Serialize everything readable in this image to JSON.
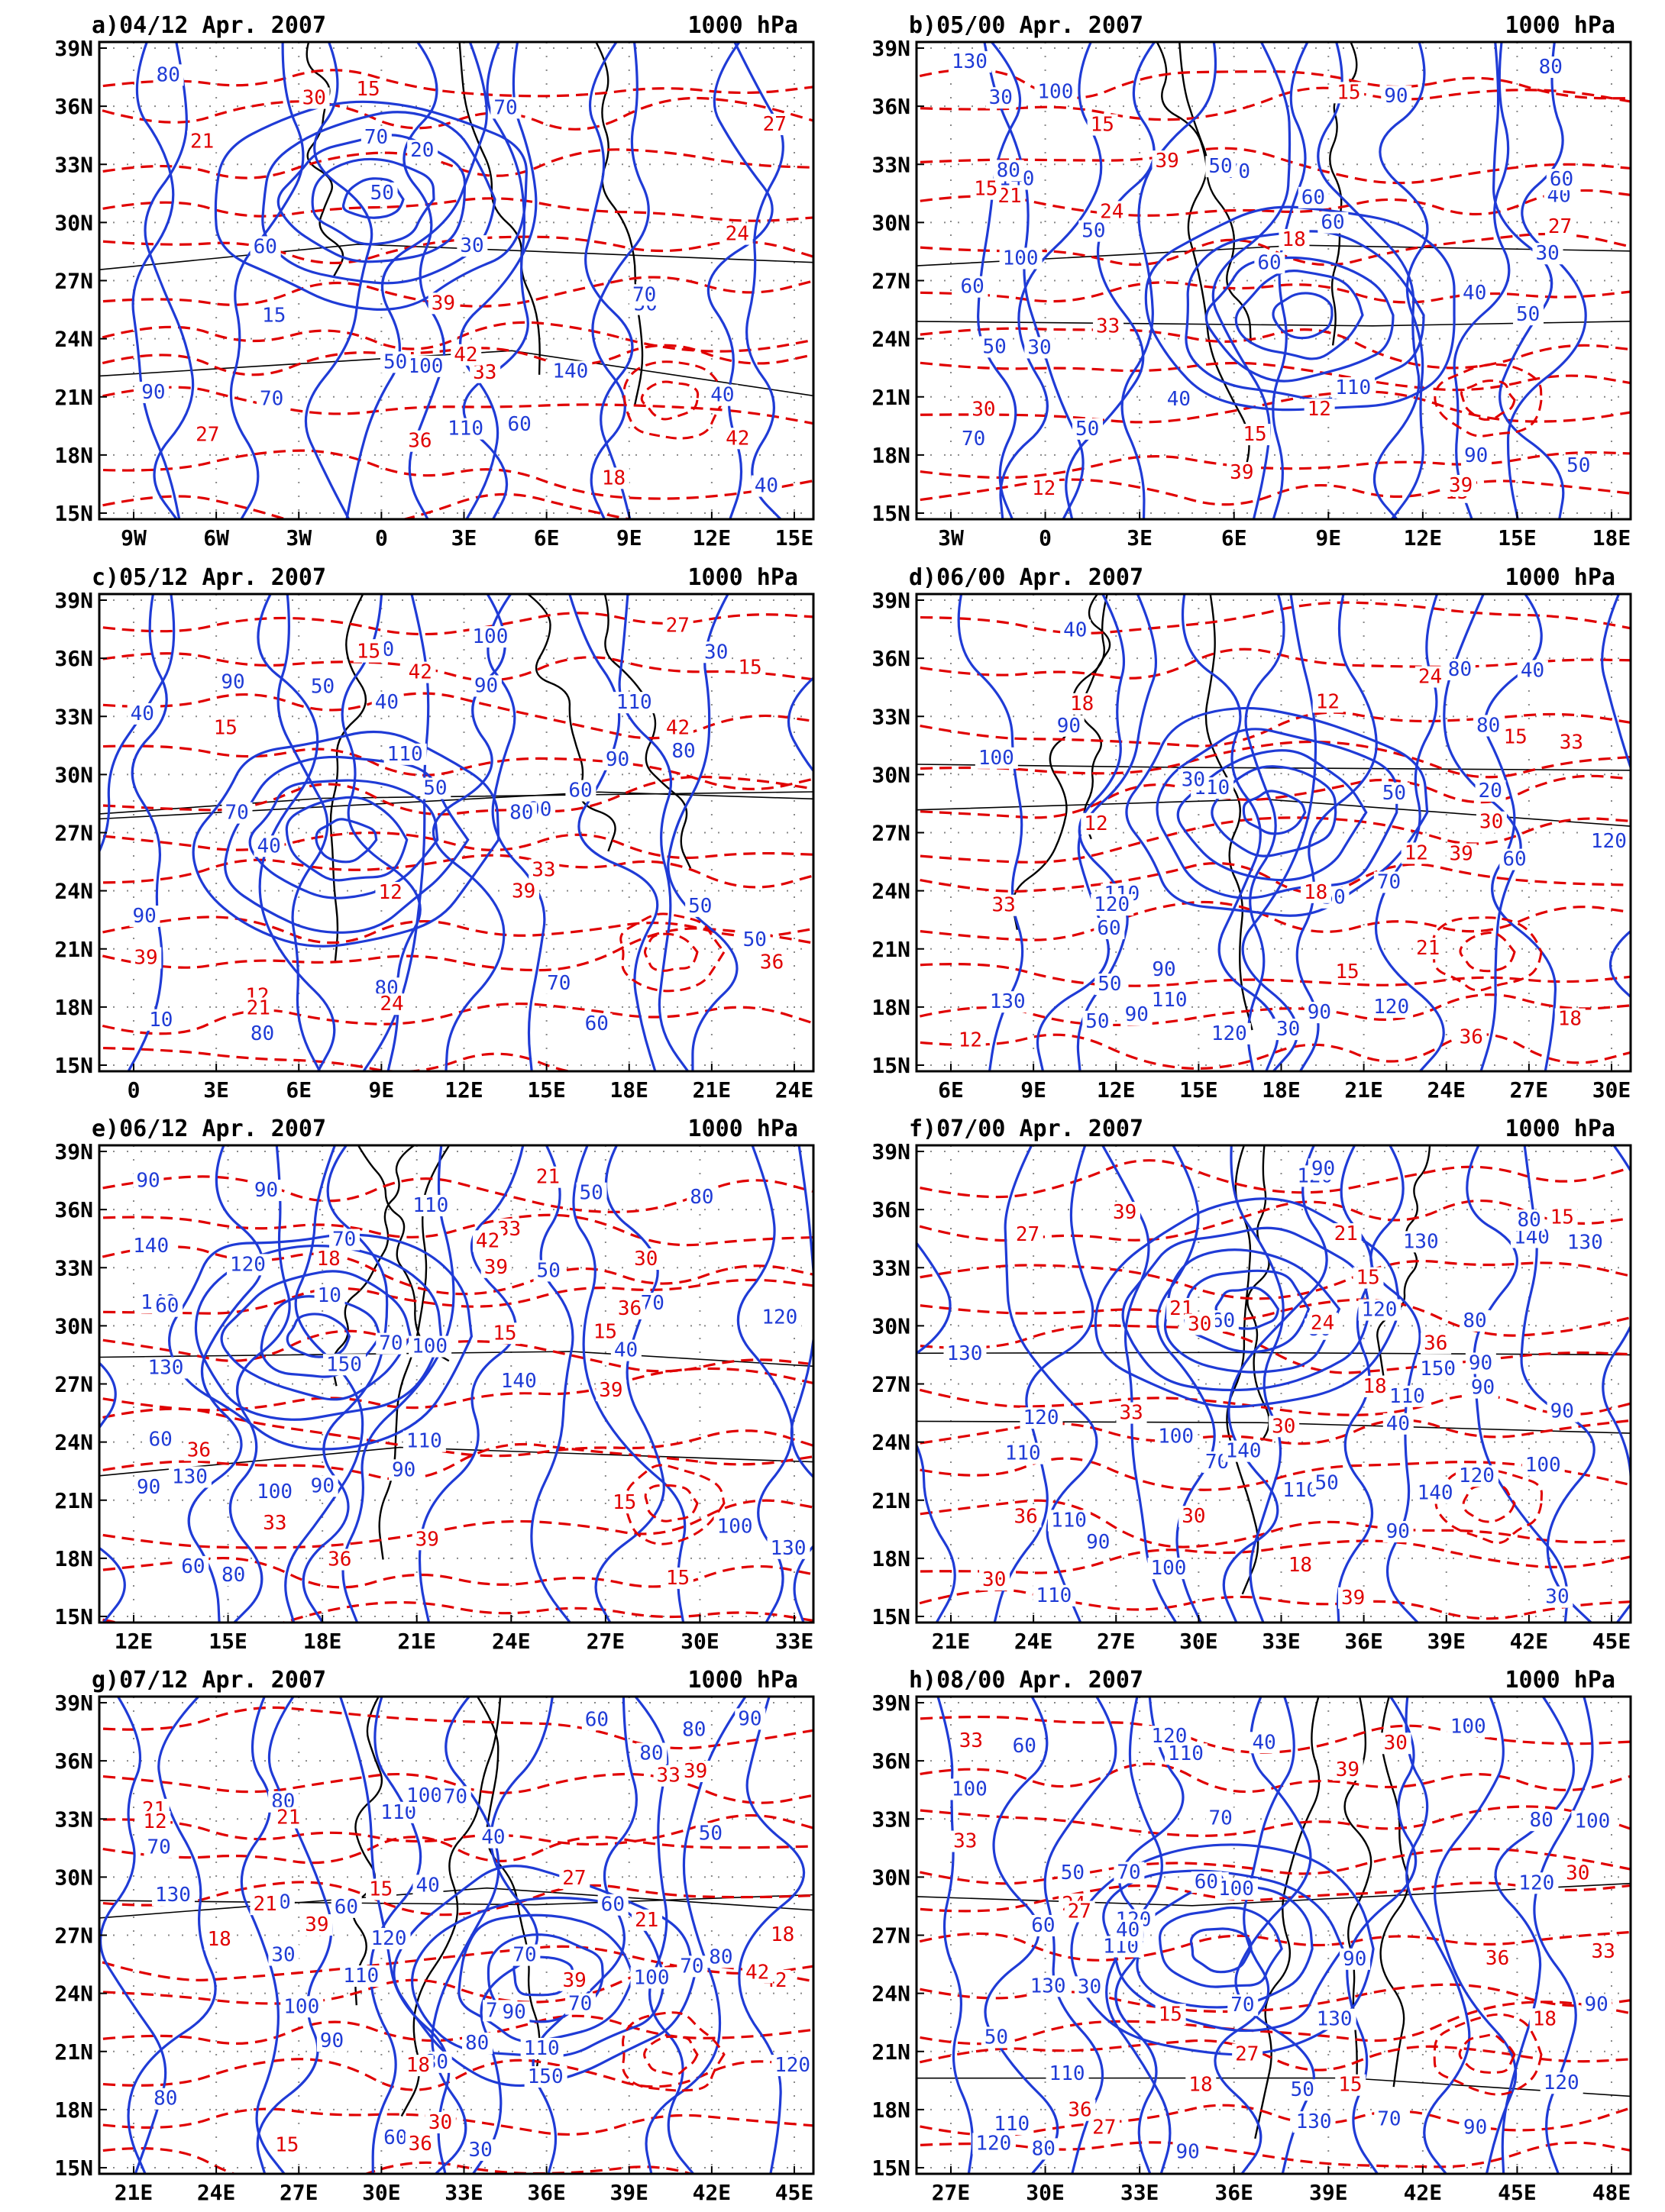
{
  "figure": {
    "colors": {
      "geopotential_contour": "#1f3bd6",
      "temperature_contour": "#e00000",
      "coastline": "#000000",
      "grid": "#888888"
    },
    "panels": [
      {
        "title_left": "a)04/12 Apr. 2007",
        "title_right": "1000 hPa",
        "x_ticks": [
          "9W",
          "6W",
          "3W",
          "0",
          "3E",
          "6E",
          "9E",
          "12E",
          "15E"
        ],
        "y_ticks": [
          "39N",
          "36N",
          "33N",
          "30N",
          "27N",
          "24N",
          "21N",
          "18N",
          "15N"
        ],
        "blue_labels": [
          "100",
          "15",
          "80",
          "70",
          "20",
          "110",
          "30",
          "140",
          "50",
          "70",
          "60",
          "90",
          "50",
          "50",
          "70",
          "70",
          "60",
          "40",
          "40"
        ],
        "red_labels": [
          "21",
          "24",
          "27",
          "30",
          "27",
          "33",
          "36",
          "39",
          "42",
          "42",
          "18",
          "15"
        ]
      },
      {
        "title_left": "b)05/00 Apr. 2007",
        "title_right": "1000 hPa",
        "x_ticks": [
          "3W",
          "0",
          "3E",
          "6E",
          "9E",
          "12E",
          "15E",
          "18E"
        ],
        "y_ticks": [
          "39N",
          "36N",
          "33N",
          "30N",
          "27N",
          "24N",
          "21N",
          "18N",
          "15N"
        ],
        "blue_labels": [
          "100",
          "80",
          "70",
          "110",
          "140",
          "130",
          "70",
          "60",
          "50",
          "40",
          "30",
          "50",
          "50",
          "60",
          "60",
          "50",
          "40",
          "80",
          "90",
          "100",
          "90",
          "30",
          "60",
          "50",
          "30",
          "60",
          "50",
          "40"
        ],
        "red_labels": [
          "12",
          "12",
          "15",
          "15",
          "15",
          "18",
          "21",
          "24",
          "27",
          "30",
          "33",
          "39",
          "39",
          "39",
          "15",
          "15"
        ]
      },
      {
        "title_left": "c)05/12 Apr. 2007",
        "title_right": "1000 hPa",
        "x_ticks": [
          "0",
          "3E",
          "6E",
          "9E",
          "12E",
          "15E",
          "18E",
          "21E",
          "24E"
        ],
        "y_ticks": [
          "39N",
          "36N",
          "33N",
          "30N",
          "27N",
          "24N",
          "21N",
          "18N",
          "15N"
        ],
        "blue_labels": [
          "110",
          "90",
          "90",
          "80",
          "90",
          "90",
          "100",
          "110",
          "80",
          "70",
          "50",
          "30",
          "10",
          "60",
          "40",
          "50",
          "40",
          "40",
          "50",
          "80",
          "60",
          "70",
          "80",
          "90",
          "50",
          "100"
        ],
        "red_labels": [
          "15",
          "12",
          "15",
          "12",
          "21",
          "24",
          "27",
          "33",
          "36",
          "39",
          "42",
          "42",
          "39",
          "15"
        ]
      },
      {
        "title_left": "d)06/00 Apr. 2007",
        "title_right": "1000 hPa",
        "x_ticks": [
          "6E",
          "9E",
          "12E",
          "15E",
          "18E",
          "21E",
          "24E",
          "27E",
          "30E"
        ],
        "y_ticks": [
          "39N",
          "36N",
          "33N",
          "30N",
          "27N",
          "24N",
          "21N",
          "18N",
          "15N"
        ],
        "blue_labels": [
          "120",
          "110",
          "120",
          "130",
          "110",
          "100",
          "90",
          "80",
          "40",
          "30",
          "20",
          "80",
          "70",
          "60",
          "40",
          "30",
          "50",
          "90",
          "60",
          "50",
          "90",
          "90",
          "110",
          "120",
          "120",
          "50",
          "50"
        ],
        "red_labels": [
          "12",
          "12",
          "12",
          "15",
          "18",
          "18",
          "21",
          "15",
          "18",
          "24",
          "30",
          "36",
          "33",
          "39",
          "33",
          "12"
        ]
      },
      {
        "title_left": "e)06/12 Apr. 2007",
        "title_right": "1000 hPa",
        "x_ticks": [
          "12E",
          "15E",
          "18E",
          "21E",
          "24E",
          "27E",
          "30E",
          "33E"
        ],
        "y_ticks": [
          "39N",
          "36N",
          "33N",
          "30N",
          "27N",
          "24N",
          "21N",
          "18N",
          "15N"
        ],
        "blue_labels": [
          "130",
          "140",
          "120",
          "150",
          "130",
          "140",
          "100",
          "80",
          "70",
          "60",
          "50",
          "40",
          "10",
          "140",
          "130",
          "120",
          "110",
          "110",
          "90",
          "90",
          "100",
          "90",
          "100",
          "70",
          "60",
          "50",
          "90",
          "80",
          "70",
          "60",
          "90"
        ],
        "red_labels": [
          "15",
          "15",
          "15",
          "15",
          "18",
          "21",
          "33",
          "33",
          "36",
          "39",
          "39",
          "42",
          "30",
          "36",
          "36",
          "39"
        ]
      },
      {
        "title_left": "f)07/00 Apr. 2007",
        "title_right": "1000 hPa",
        "x_ticks": [
          "21E",
          "24E",
          "27E",
          "30E",
          "33E",
          "36E",
          "39E",
          "42E",
          "45E"
        ],
        "y_ticks": [
          "39N",
          "36N",
          "33N",
          "30N",
          "27N",
          "24N",
          "21N",
          "18N",
          "15N"
        ],
        "blue_labels": [
          "150",
          "140",
          "130",
          "120",
          "110",
          "110",
          "120",
          "110",
          "100",
          "90",
          "50",
          "40",
          "30",
          "110",
          "120",
          "90",
          "120",
          "80",
          "80",
          "100",
          "100",
          "90",
          "90",
          "70",
          "60",
          "90",
          "110",
          "130",
          "130",
          "140",
          "140",
          "80",
          "90"
        ],
        "red_labels": [
          "15",
          "15",
          "18",
          "18",
          "21",
          "21",
          "24",
          "27",
          "30",
          "30",
          "30",
          "30",
          "33",
          "36",
          "36",
          "39",
          "39"
        ]
      },
      {
        "title_left": "g)07/12 Apr. 2007",
        "title_right": "1000 hPa",
        "x_ticks": [
          "21E",
          "24E",
          "27E",
          "30E",
          "33E",
          "36E",
          "39E",
          "42E",
          "45E"
        ],
        "y_ticks": [
          "39N",
          "36N",
          "33N",
          "30N",
          "27N",
          "24N",
          "21N",
          "18N",
          "15N"
        ],
        "blue_labels": [
          "110",
          "100",
          "90",
          "100",
          "110",
          "150",
          "130",
          "80",
          "60",
          "30",
          "40",
          "110",
          "70",
          "60",
          "70",
          "80",
          "80",
          "70",
          "90",
          "120",
          "110",
          "100",
          "80",
          "70",
          "80",
          "60",
          "50",
          "40",
          "30",
          "60",
          "70",
          "80",
          "90",
          "70",
          "80",
          "120"
        ],
        "red_labels": [
          "18",
          "18",
          "18",
          "15",
          "21",
          "21",
          "21",
          "15",
          "12",
          "21",
          "27",
          "30",
          "33",
          "36",
          "39",
          "39",
          "39",
          "42",
          "42"
        ]
      },
      {
        "title_left": "h)08/00 Apr. 2007",
        "title_right": "1000 hPa",
        "x_ticks": [
          "27E",
          "30E",
          "33E",
          "36E",
          "39E",
          "42E",
          "45E",
          "48E"
        ],
        "y_ticks": [
          "39N",
          "36N",
          "33N",
          "30N",
          "27N",
          "24N",
          "21N",
          "18N",
          "15N"
        ],
        "blue_labels": [
          "120",
          "130",
          "120",
          "100",
          "90",
          "80",
          "100",
          "70",
          "80",
          "110",
          "120",
          "130",
          "50",
          "40",
          "70",
          "60",
          "50",
          "90",
          "90",
          "100",
          "110",
          "120",
          "120",
          "130",
          "110",
          "100",
          "90",
          "60",
          "70",
          "50",
          "40",
          "30",
          "70",
          "60",
          "70",
          "110"
        ],
        "red_labels": [
          "15",
          "18",
          "18",
          "24",
          "27",
          "30",
          "33",
          "30",
          "33",
          "36",
          "27",
          "27",
          "33",
          "15",
          "39",
          "36"
        ]
      }
    ]
  }
}
